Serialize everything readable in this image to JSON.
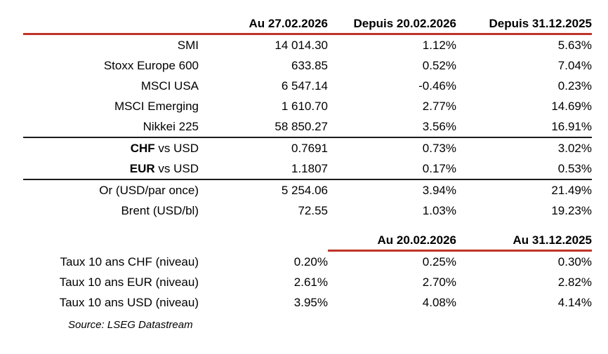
{
  "colors": {
    "accent_red": "#bf3428",
    "divider_black": "#1a1a1a",
    "text": "#000000",
    "background": "#ffffff"
  },
  "table": {
    "header_top": {
      "col_value": "Au 27.02.2026",
      "col_week": "Depuis 20.02.2026",
      "col_ytd": "Depuis 31.12.2025"
    },
    "markets": [
      {
        "label": "SMI",
        "value": "14 014.30",
        "since_week": "1.12%",
        "since_ytd": "5.63%"
      },
      {
        "label": "Stoxx Europe 600",
        "value": "633.85",
        "since_week": "0.52%",
        "since_ytd": "7.04%"
      },
      {
        "label": "MSCI USA",
        "value": "6 547.14",
        "since_week": "-0.46%",
        "since_ytd": "0.23%"
      },
      {
        "label": "MSCI Emerging",
        "value": "1 610.70",
        "since_week": "2.77%",
        "since_ytd": "14.69%"
      },
      {
        "label": "Nikkei 225",
        "value": "58 850.27",
        "since_week": "3.56%",
        "since_ytd": "16.91%"
      }
    ],
    "fx": [
      {
        "label_bold": "CHF",
        "label_rest": " vs USD",
        "value": "0.7691",
        "since_week": "0.73%",
        "since_ytd": "3.02%"
      },
      {
        "label_bold": "EUR",
        "label_rest": " vs USD",
        "value": "1.1807",
        "since_week": "0.17%",
        "since_ytd": "0.53%"
      }
    ],
    "commodities": [
      {
        "label": "Or (USD/par once)",
        "value": "5 254.06",
        "since_week": "3.94%",
        "since_ytd": "21.49%"
      },
      {
        "label": "Brent (USD/bl)",
        "value": "72.55",
        "since_week": "1.03%",
        "since_ytd": "19.23%"
      }
    ],
    "header_rates": {
      "col_week": "Au 20.02.2026",
      "col_ytd": "Au 31.12.2025"
    },
    "rates": [
      {
        "label": "Taux 10 ans CHF (niveau)",
        "value": "0.20%",
        "at_week": "0.25%",
        "at_ytd": "0.30%"
      },
      {
        "label": "Taux 10 ans EUR (niveau)",
        "value": "2.61%",
        "at_week": "2.70%",
        "at_ytd": "2.82%"
      },
      {
        "label": "Taux 10 ans USD (niveau)",
        "value": "3.95%",
        "at_week": "4.08%",
        "at_ytd": "4.14%"
      }
    ],
    "source": "Source: LSEG Datastream"
  }
}
